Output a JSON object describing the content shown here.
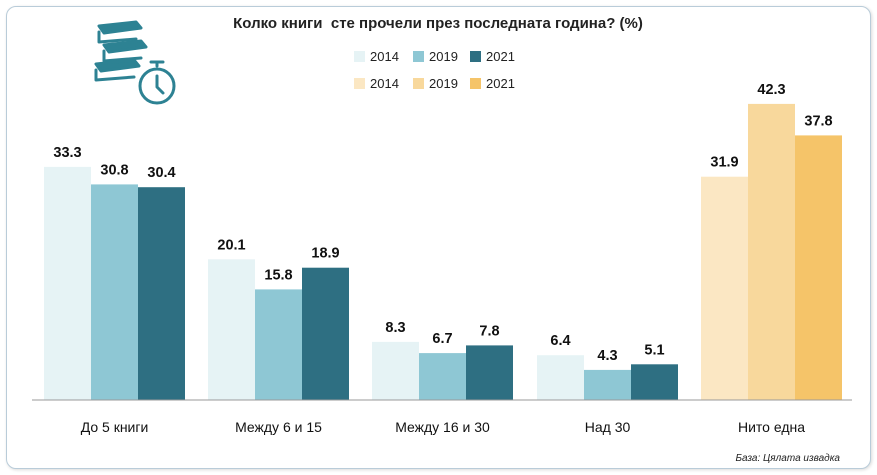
{
  "chart_data": {
    "type": "bar",
    "title": "Колко книги  сте прочели през последната година? (%)",
    "categories": [
      "До 5 книги",
      "Между 6 и 15",
      "Между 16 и 30",
      "Над 30",
      "Нито една"
    ],
    "series": [
      {
        "name": "2014",
        "values": [
          33.3,
          20.1,
          8.3,
          6.4,
          31.9
        ]
      },
      {
        "name": "2019",
        "values": [
          30.8,
          15.8,
          6.7,
          4.3,
          42.3
        ]
      },
      {
        "name": "2021",
        "values": [
          30.4,
          18.9,
          7.8,
          5.1,
          37.8
        ]
      }
    ],
    "ylim": [
      0,
      50
    ],
    "grid": false,
    "legend": {
      "placement": "top-center",
      "groups": [
        {
          "applies_to": "first four categories",
          "entries": [
            "2014",
            "2019",
            "2021"
          ],
          "colors": [
            "#e6f3f5",
            "#8ec7d4",
            "#2e6f82"
          ]
        },
        {
          "applies_to": "Нито една",
          "entries": [
            "2014",
            "2019",
            "2021"
          ],
          "colors": [
            "#fbe7c3",
            "#f8d89c",
            "#f5c469"
          ]
        }
      ]
    },
    "palette_blue": [
      "#e6f3f5",
      "#8ec7d4",
      "#2e6f82"
    ],
    "palette_orange": [
      "#fbe7c3",
      "#f8d89c",
      "#f5c469"
    ],
    "axis_color": "#9a9a9a",
    "icon": "books-stopwatch-icon",
    "icon_color": "#2d8293"
  },
  "footer": {
    "source": "База: Цялата извадка"
  }
}
